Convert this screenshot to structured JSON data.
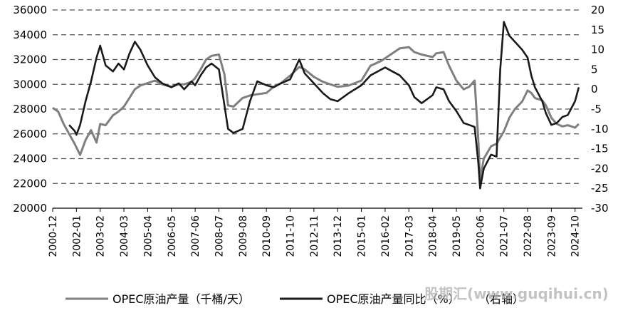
{
  "chart_data": {
    "type": "line",
    "title": "",
    "xlabel": "",
    "ylabel": "",
    "y_left": {
      "range": [
        20000,
        36000
      ],
      "ticks": [
        20000,
        22000,
        24000,
        26000,
        28000,
        30000,
        32000,
        34000,
        36000
      ]
    },
    "y_right": {
      "range": [
        -30,
        20
      ],
      "ticks": [
        -30,
        -25,
        -20,
        -15,
        -10,
        -5,
        0,
        5,
        10,
        15,
        20
      ]
    },
    "x_ticks": [
      "2000-12",
      "2002-01",
      "2003-02",
      "2004-03",
      "2005-04",
      "2006-05",
      "2007-06",
      "2008-07",
      "2009-08",
      "2010-09",
      "2011-10",
      "2012-11",
      "2013-12",
      "2015-01",
      "2016-02",
      "2017-03",
      "2018-04",
      "2019-05",
      "2020-06",
      "2021-07",
      "2022-08",
      "2023-09",
      "2024-10"
    ],
    "grid": "horizontal dashed",
    "legend_position": "bottom",
    "series": [
      {
        "name": "OPEC原油产量（千桶/天）",
        "axis": "left",
        "color": "#7f7f7f",
        "points": [
          [
            "2000-12",
            28100
          ],
          [
            "2001-03",
            27800
          ],
          [
            "2001-06",
            26800
          ],
          [
            "2001-09",
            26000
          ],
          [
            "2001-12",
            25200
          ],
          [
            "2002-01",
            24900
          ],
          [
            "2002-03",
            24300
          ],
          [
            "2002-06",
            25500
          ],
          [
            "2002-09",
            26300
          ],
          [
            "2002-12",
            25300
          ],
          [
            "2003-02",
            26800
          ],
          [
            "2003-05",
            26700
          ],
          [
            "2003-09",
            27500
          ],
          [
            "2003-12",
            27800
          ],
          [
            "2004-03",
            28200
          ],
          [
            "2004-06",
            28900
          ],
          [
            "2004-09",
            29600
          ],
          [
            "2004-12",
            29900
          ],
          [
            "2005-04",
            30100
          ],
          [
            "2005-08",
            30300
          ],
          [
            "2005-12",
            30000
          ],
          [
            "2006-05",
            29800
          ],
          [
            "2006-09",
            30000
          ],
          [
            "2006-12",
            30000
          ],
          [
            "2007-04",
            30200
          ],
          [
            "2007-06",
            30500
          ],
          [
            "2007-09",
            31200
          ],
          [
            "2007-12",
            32000
          ],
          [
            "2008-03",
            32300
          ],
          [
            "2008-07",
            32400
          ],
          [
            "2008-10",
            30800
          ],
          [
            "2008-12",
            28300
          ],
          [
            "2009-03",
            28200
          ],
          [
            "2009-08",
            28900
          ],
          [
            "2009-12",
            29100
          ],
          [
            "2010-04",
            29200
          ],
          [
            "2010-09",
            29300
          ],
          [
            "2011-01",
            29800
          ],
          [
            "2011-05",
            30100
          ],
          [
            "2011-10",
            30700
          ],
          [
            "2012-03",
            31400
          ],
          [
            "2012-06",
            31200
          ],
          [
            "2012-11",
            30600
          ],
          [
            "2013-04",
            30200
          ],
          [
            "2013-08",
            30000
          ],
          [
            "2013-12",
            29800
          ],
          [
            "2014-06",
            29900
          ],
          [
            "2015-01",
            30300
          ],
          [
            "2015-06",
            31500
          ],
          [
            "2015-12",
            31900
          ],
          [
            "2016-02",
            32100
          ],
          [
            "2016-06",
            32500
          ],
          [
            "2016-10",
            32900
          ],
          [
            "2017-03",
            33000
          ],
          [
            "2017-06",
            32600
          ],
          [
            "2017-10",
            32400
          ],
          [
            "2018-04",
            32200
          ],
          [
            "2018-06",
            32500
          ],
          [
            "2018-10",
            32600
          ],
          [
            "2019-01",
            31500
          ],
          [
            "2019-05",
            30300
          ],
          [
            "2019-09",
            29600
          ],
          [
            "2019-12",
            29800
          ],
          [
            "2020-03",
            30300
          ],
          [
            "2020-05",
            25500
          ],
          [
            "2020-06",
            22300
          ],
          [
            "2020-08",
            24000
          ],
          [
            "2020-12",
            25000
          ],
          [
            "2021-03",
            25200
          ],
          [
            "2021-07",
            26200
          ],
          [
            "2021-10",
            27300
          ],
          [
            "2022-01",
            28000
          ],
          [
            "2022-05",
            28600
          ],
          [
            "2022-08",
            29500
          ],
          [
            "2022-10",
            29300
          ],
          [
            "2022-12",
            28900
          ],
          [
            "2023-04",
            28700
          ],
          [
            "2023-06",
            28300
          ],
          [
            "2023-09",
            27300
          ],
          [
            "2023-12",
            26800
          ],
          [
            "2024-03",
            26600
          ],
          [
            "2024-06",
            26700
          ],
          [
            "2024-10",
            26500
          ],
          [
            "2024-12",
            26800
          ]
        ]
      },
      {
        "name": "OPEC原油产量同比（%）",
        "axis": "right",
        "note": "右轴",
        "color": "#1a1a1a",
        "points": [
          [
            "2001-09",
            -9.0
          ],
          [
            "2001-12",
            -10.5
          ],
          [
            "2002-01",
            -11.5
          ],
          [
            "2002-03",
            -9.0
          ],
          [
            "2002-06",
            -3.0
          ],
          [
            "2002-09",
            2.0
          ],
          [
            "2002-12",
            8.0
          ],
          [
            "2003-02",
            11.0
          ],
          [
            "2003-05",
            6.0
          ],
          [
            "2003-09",
            4.5
          ],
          [
            "2003-12",
            6.5
          ],
          [
            "2004-03",
            5.0
          ],
          [
            "2004-06",
            9.0
          ],
          [
            "2004-09",
            12.0
          ],
          [
            "2004-12",
            10.0
          ],
          [
            "2005-04",
            6.0
          ],
          [
            "2005-08",
            3.0
          ],
          [
            "2005-12",
            1.5
          ],
          [
            "2006-05",
            0.5
          ],
          [
            "2006-09",
            1.5
          ],
          [
            "2006-12",
            0.0
          ],
          [
            "2007-04",
            2.0
          ],
          [
            "2007-06",
            1.0
          ],
          [
            "2007-09",
            3.5
          ],
          [
            "2007-12",
            5.5
          ],
          [
            "2008-03",
            6.5
          ],
          [
            "2008-07",
            5.0
          ],
          [
            "2008-10",
            -4.0
          ],
          [
            "2008-12",
            -10.0
          ],
          [
            "2009-03",
            -11.0
          ],
          [
            "2009-08",
            -10.0
          ],
          [
            "2009-12",
            -3.0
          ],
          [
            "2010-04",
            2.0
          ],
          [
            "2010-09",
            1.0
          ],
          [
            "2011-01",
            0.5
          ],
          [
            "2011-05",
            1.5
          ],
          [
            "2011-10",
            2.5
          ],
          [
            "2012-03",
            7.5
          ],
          [
            "2012-06",
            4.0
          ],
          [
            "2012-11",
            1.5
          ],
          [
            "2013-04",
            -1.0
          ],
          [
            "2013-08",
            -2.5
          ],
          [
            "2013-12",
            -3.0
          ],
          [
            "2014-06",
            -1.0
          ],
          [
            "2015-01",
            1.0
          ],
          [
            "2015-06",
            3.5
          ],
          [
            "2015-12",
            5.0
          ],
          [
            "2016-02",
            5.5
          ],
          [
            "2016-06",
            4.5
          ],
          [
            "2016-10",
            3.5
          ],
          [
            "2017-03",
            1.0
          ],
          [
            "2017-06",
            -2.0
          ],
          [
            "2017-10",
            -3.5
          ],
          [
            "2018-04",
            -1.5
          ],
          [
            "2018-06",
            0.5
          ],
          [
            "2018-10",
            0.0
          ],
          [
            "2019-01",
            -3.0
          ],
          [
            "2019-05",
            -5.5
          ],
          [
            "2019-09",
            -8.5
          ],
          [
            "2019-12",
            -9.0
          ],
          [
            "2020-03",
            -9.5
          ],
          [
            "2020-05",
            -18.5
          ],
          [
            "2020-06",
            -25.0
          ],
          [
            "2020-08",
            -20.0
          ],
          [
            "2020-12",
            -16.5
          ],
          [
            "2021-03",
            -17.0
          ],
          [
            "2021-05",
            5.0
          ],
          [
            "2021-07",
            17.0
          ],
          [
            "2021-10",
            13.5
          ],
          [
            "2022-01",
            12.0
          ],
          [
            "2022-05",
            10.0
          ],
          [
            "2022-08",
            8.0
          ],
          [
            "2022-10",
            3.5
          ],
          [
            "2022-12",
            0.5
          ],
          [
            "2023-04",
            -3.0
          ],
          [
            "2023-06",
            -6.0
          ],
          [
            "2023-09",
            -9.0
          ],
          [
            "2023-12",
            -8.5
          ],
          [
            "2024-03",
            -7.0
          ],
          [
            "2024-06",
            -6.5
          ],
          [
            "2024-10",
            -3.0
          ],
          [
            "2024-12",
            0.5
          ]
        ]
      }
    ]
  },
  "legend": {
    "series1_label": "OPEC原油产量（千桶/天）",
    "series2_label": "OPEC原油产量同比（%）",
    "series2_axis_note": "（右轴）"
  },
  "watermark": "股期汇(www.guqihui.cn)"
}
